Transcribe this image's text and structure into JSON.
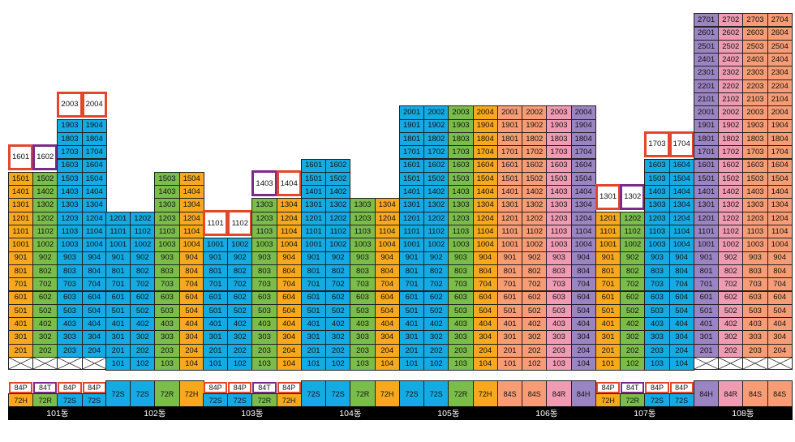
{
  "colors": {
    "72S": "#14aae4",
    "72H": "#f7a81c",
    "72R": "#7bbd4b",
    "84S": "#f79c74",
    "84R": "#ef9bb3",
    "84H": "#9b84c2",
    "84P_border": "#e2472b",
    "84T_border": "#7b2a8c"
  },
  "buildings": [
    {
      "name": "101동",
      "columns": [
        {
          "type": "72H",
          "floors": 15,
          "penthouse": {
            "label": "1601",
            "style": "red"
          }
        },
        {
          "type": "72R",
          "floors": 15,
          "penthouse": {
            "label": "1602",
            "style": "purple"
          }
        },
        {
          "type": "72S",
          "floors": 19,
          "penthouse": {
            "label": "2003",
            "style": "red"
          }
        },
        {
          "type": "72S",
          "floors": 19,
          "penthouse": {
            "label": "2004",
            "style": "red"
          }
        }
      ],
      "types_top": [
        {
          "label": "84P",
          "style": "red"
        },
        {
          "label": "84T",
          "style": "purple"
        },
        {
          "label": "84P",
          "style": "red"
        },
        {
          "label": "84P",
          "style": "red"
        }
      ],
      "types_bottom": [
        {
          "label": "72H",
          "color": "72H"
        },
        {
          "label": "72R",
          "color": "72R"
        },
        {
          "label": "72S",
          "color": "72S"
        },
        {
          "label": "72S",
          "color": "72S"
        }
      ]
    },
    {
      "name": "102동",
      "columns": [
        {
          "type": "72S",
          "floors": 12,
          "first_floor": 1
        },
        {
          "type": "72S",
          "floors": 12,
          "first_floor": 1
        },
        {
          "type": "72R",
          "floors": 15,
          "first_floor": 1
        },
        {
          "type": "72H",
          "floors": 15,
          "first_floor": 1
        }
      ],
      "types_bottom": [
        {
          "label": "72S",
          "color": "72S"
        },
        {
          "label": "72S",
          "color": "72S"
        },
        {
          "label": "72R",
          "color": "72R"
        },
        {
          "label": "72H",
          "color": "72H"
        }
      ]
    },
    {
      "name": "103동",
      "columns": [
        {
          "type": "72S",
          "floors": 10,
          "first_floor": 1,
          "penthouse": {
            "label": "1101",
            "style": "red"
          }
        },
        {
          "type": "72S",
          "floors": 10,
          "first_floor": 1,
          "penthouse": {
            "label": "1102",
            "style": "red"
          }
        },
        {
          "type": "72R",
          "floors": 13,
          "first_floor": 1,
          "penthouse": {
            "label": "1403",
            "style": "purple"
          }
        },
        {
          "type": "72H",
          "floors": 13,
          "first_floor": 1,
          "penthouse": {
            "label": "1404",
            "style": "red"
          }
        }
      ],
      "types_top": [
        {
          "label": "84P",
          "style": "red"
        },
        {
          "label": "84P",
          "style": "red"
        },
        {
          "label": "84T",
          "style": "purple"
        },
        {
          "label": "84P",
          "style": "red"
        }
      ],
      "types_bottom": [
        {
          "label": "72S",
          "color": "72S"
        },
        {
          "label": "72S",
          "color": "72S"
        },
        {
          "label": "72R",
          "color": "72R"
        },
        {
          "label": "72H",
          "color": "72H"
        }
      ]
    },
    {
      "name": "104동",
      "columns": [
        {
          "type": "72S",
          "floors": 16,
          "first_floor": 1
        },
        {
          "type": "72S",
          "floors": 16,
          "first_floor": 1
        },
        {
          "type": "72R",
          "floors": 13,
          "first_floor": 1
        },
        {
          "type": "72H",
          "floors": 13,
          "first_floor": 1
        }
      ],
      "types_bottom": [
        {
          "label": "72S",
          "color": "72S"
        },
        {
          "label": "72S",
          "color": "72S"
        },
        {
          "label": "72R",
          "color": "72R"
        },
        {
          "label": "72H",
          "color": "72H"
        }
      ]
    },
    {
      "name": "105동",
      "columns": [
        {
          "type": "72S",
          "floors": 20,
          "first_floor": 1
        },
        {
          "type": "72S",
          "floors": 20,
          "first_floor": 1
        },
        {
          "type": "72R",
          "floors": 20,
          "first_floor": 1
        },
        {
          "type": "72H",
          "floors": 20,
          "first_floor": 1
        }
      ],
      "types_bottom": [
        {
          "label": "72S",
          "color": "72S"
        },
        {
          "label": "72S",
          "color": "72S"
        },
        {
          "label": "72R",
          "color": "72R"
        },
        {
          "label": "72H",
          "color": "72H"
        }
      ]
    },
    {
      "name": "106동",
      "columns": [
        {
          "type": "84S",
          "floors": 20,
          "first_floor": 1
        },
        {
          "type": "84S",
          "floors": 20,
          "first_floor": 1
        },
        {
          "type": "84R",
          "floors": 20,
          "first_floor": 1
        },
        {
          "type": "84H",
          "floors": 20,
          "first_floor": 1
        }
      ],
      "types_bottom": [
        {
          "label": "84S",
          "color": "84S"
        },
        {
          "label": "84S",
          "color": "84S"
        },
        {
          "label": "84R",
          "color": "84R"
        },
        {
          "label": "84H",
          "color": "84H"
        }
      ]
    },
    {
      "name": "107동",
      "columns": [
        {
          "type": "72H",
          "floors": 12,
          "first_floor": 1,
          "penthouse": {
            "label": "1301",
            "style": "red"
          }
        },
        {
          "type": "72R",
          "floors": 12,
          "first_floor": 1,
          "penthouse": {
            "label": "1302",
            "style": "purple"
          }
        },
        {
          "type": "72S",
          "floors": 16,
          "first_floor": 1,
          "penthouse": {
            "label": "1703",
            "style": "red"
          }
        },
        {
          "type": "72S",
          "floors": 16,
          "first_floor": 1,
          "penthouse": {
            "label": "1704",
            "style": "red"
          }
        }
      ],
      "types_top": [
        {
          "label": "84P",
          "style": "red"
        },
        {
          "label": "84T",
          "style": "purple"
        },
        {
          "label": "84P",
          "style": "red"
        },
        {
          "label": "84P",
          "style": "red"
        }
      ],
      "types_bottom": [
        {
          "label": "72H",
          "color": "72H"
        },
        {
          "label": "72R",
          "color": "72R"
        },
        {
          "label": "72S",
          "color": "72S"
        },
        {
          "label": "72S",
          "color": "72S"
        }
      ]
    },
    {
      "name": "108동",
      "columns": [
        {
          "type": "84H",
          "floors": 27,
          "first_floor": 2
        },
        {
          "type": "84R",
          "floors": 27,
          "first_floor": 2
        },
        {
          "type": "84S",
          "floors": 27,
          "first_floor": 2
        },
        {
          "type": "84S",
          "floors": 27,
          "first_floor": 2
        }
      ],
      "types_bottom": [
        {
          "label": "84H",
          "color": "84H"
        },
        {
          "label": "84R",
          "color": "84R"
        },
        {
          "label": "84S",
          "color": "84S"
        },
        {
          "label": "84S",
          "color": "84S"
        }
      ]
    }
  ]
}
